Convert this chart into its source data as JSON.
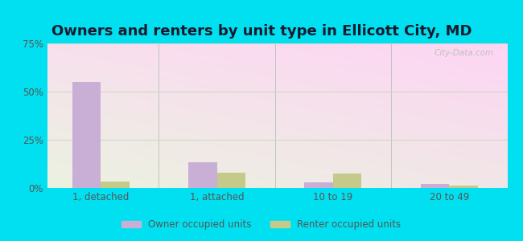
{
  "title": "Owners and renters by unit type in Ellicott City, MD",
  "categories": [
    "1, detached",
    "1, attached",
    "10 to 19",
    "20 to 49"
  ],
  "owner_values": [
    55.0,
    13.5,
    3.0,
    2.2
  ],
  "renter_values": [
    3.5,
    8.0,
    7.5,
    1.2
  ],
  "owner_color": "#c9aed6",
  "renter_color": "#c5c98a",
  "ylim": [
    0,
    75
  ],
  "yticks": [
    0,
    25,
    50,
    75
  ],
  "ytick_labels": [
    "0%",
    "25%",
    "50%",
    "75%"
  ],
  "background_outer": "#00e0f0",
  "watermark": "City-Data.com",
  "legend_owner": "Owner occupied units",
  "legend_renter": "Renter occupied units",
  "title_fontsize": 13,
  "bar_width": 0.32,
  "tick_color": "#555555",
  "grid_color": "#d0d8c8"
}
